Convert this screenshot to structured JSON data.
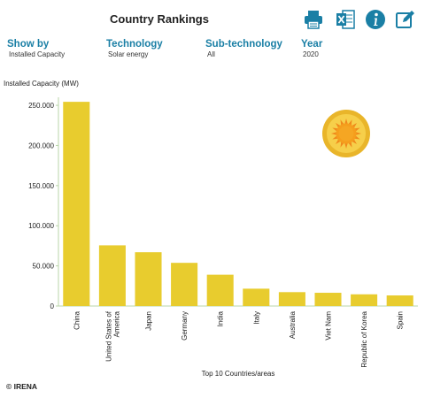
{
  "header": {
    "title": "Country Rankings"
  },
  "toolbar": {
    "icons": [
      "printer-icon",
      "excel-icon",
      "info-icon",
      "edit-icon"
    ]
  },
  "filters": {
    "show_by": {
      "label": "Show by",
      "value": "Installed Capacity"
    },
    "technology": {
      "label": "Technology",
      "value": "Solar energy"
    },
    "sub_technology": {
      "label": "Sub-technology",
      "value": "All"
    },
    "year": {
      "label": "Year",
      "value": "2020"
    }
  },
  "colors": {
    "bar": "#e8cc2e",
    "accent": "#1a7fa5",
    "axis": "#b8d6a8"
  },
  "chart_data": {
    "type": "bar",
    "ylabel": "Installed Capacity (MW)",
    "xlabel": "Top 10 Countries/areas",
    "categories": [
      "China",
      "United States of America",
      "Japan",
      "Germany",
      "India",
      "Italy",
      "Australia",
      "Viet Nam",
      "Republic of Korea",
      "Spain"
    ],
    "category_lines": [
      [
        "China"
      ],
      [
        "United States of",
        "America"
      ],
      [
        "Japan"
      ],
      [
        "Germany"
      ],
      [
        "India"
      ],
      [
        "Italy"
      ],
      [
        "Australia"
      ],
      [
        "Viet Nam"
      ],
      [
        "Republic of Korea"
      ],
      [
        "Spain"
      ]
    ],
    "values": [
      254355,
      75572,
      67000,
      53783,
      38983,
      21600,
      17300,
      16500,
      14575,
      13200
    ],
    "ylim": [
      0,
      260000
    ],
    "yticks": [
      0,
      50000,
      100000,
      150000,
      200000,
      250000
    ],
    "ytick_labels": [
      "0",
      "50.000",
      "100.000",
      "150.000",
      "200.000",
      "250.000"
    ],
    "grid": false,
    "legend": "none",
    "decoration_icon": "sun-icon"
  },
  "footer": {
    "copyright": "© IRENA"
  }
}
